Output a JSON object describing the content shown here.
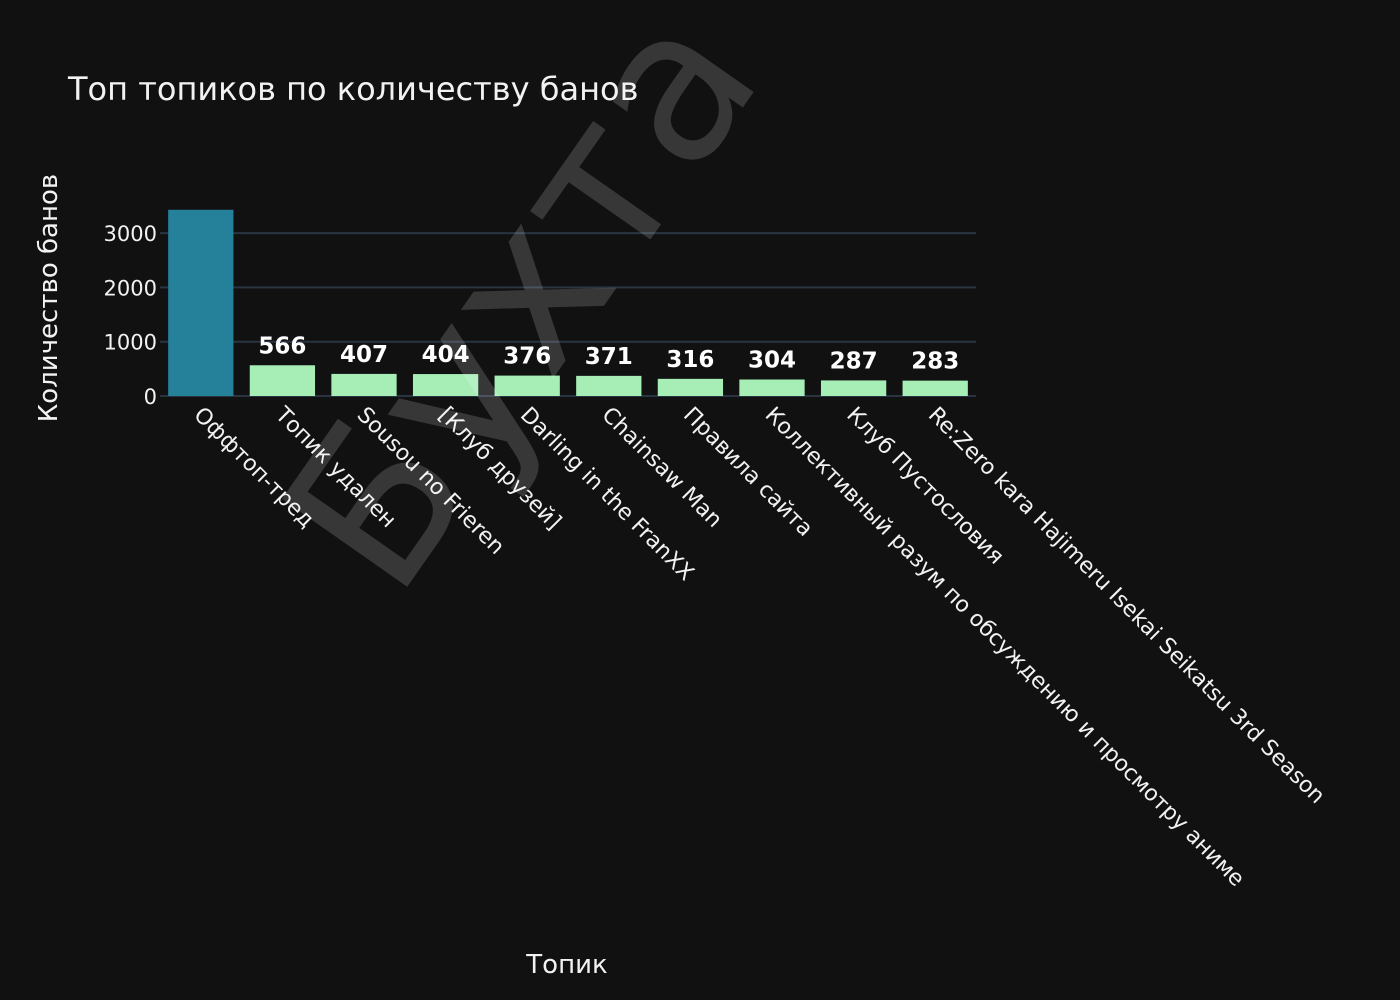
{
  "chart_data": {
    "type": "bar",
    "title": "Топ топиков по количеству банов",
    "xlabel": "Топик",
    "ylabel": "Количество банов",
    "categories": [
      "Оффтоп-тред",
      "Топик удален",
      "Sousou no Frieren",
      "[Клуб друзей]",
      "Darling in the FranXX",
      "Chainsaw Man",
      "Правила сайта",
      "Коллективный разум по обсуждению и просмотру аниме",
      "Клуб Пустословия",
      "Re:Zero kara Hajimeru Isekai Seikatsu 3rd Season"
    ],
    "values": [
      3430,
      566,
      407,
      404,
      376,
      371,
      316,
      304,
      287,
      283
    ],
    "data_labels": [
      "",
      "566",
      "407",
      "404",
      "376",
      "371",
      "316",
      "304",
      "287",
      "283"
    ],
    "bar_colors": [
      "#25809a",
      "#a6edb6",
      "#a6edb6",
      "#a6edb6",
      "#a6edb6",
      "#a6edb6",
      "#a6edb6",
      "#a6edb6",
      "#a6edb6",
      "#a6edb6"
    ],
    "yticks": [
      0,
      1000,
      2000,
      3000
    ],
    "ylim": [
      0,
      3610
    ],
    "grid": true,
    "legend": "none"
  },
  "watermark": "Бухта",
  "colors": {
    "background": "#111111",
    "grid": "#283442",
    "text": "#f2f2f2"
  }
}
